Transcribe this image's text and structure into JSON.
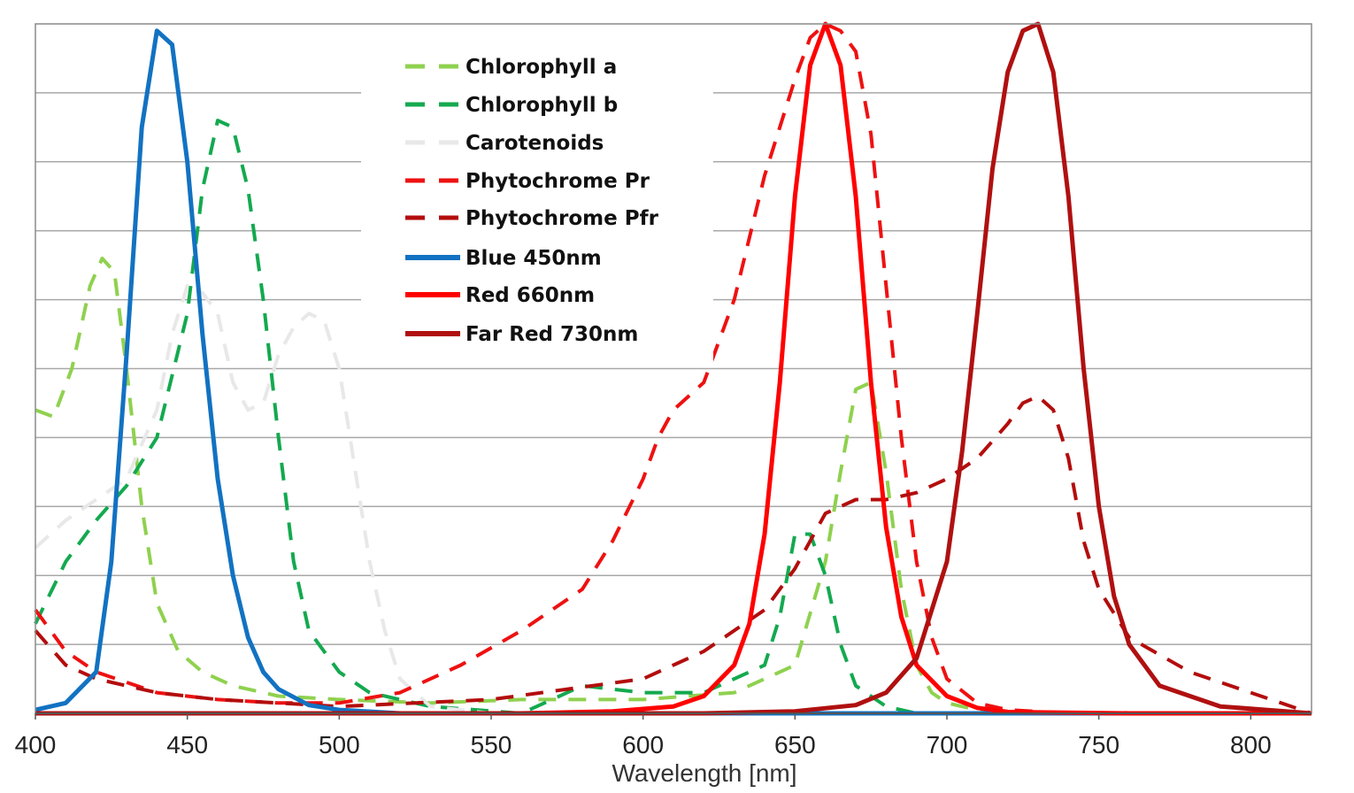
{
  "chart_data": {
    "type": "line",
    "title": "",
    "xlabel": "Wavelength [nm]",
    "ylabel": "",
    "xlim": [
      400,
      820
    ],
    "ylim": [
      0,
      1
    ],
    "x_ticks": [
      400,
      450,
      500,
      550,
      600,
      650,
      700,
      750,
      800
    ],
    "grid": "horizontal",
    "legend_position": "top-center",
    "series": [
      {
        "name": "Chlorophyll a",
        "style": "dashed",
        "color": "#8fd14f",
        "x": [
          400,
          406,
          412,
          418,
          422,
          426,
          430,
          435,
          440,
          447,
          455,
          465,
          480,
          500,
          530,
          560,
          600,
          630,
          650,
          660,
          665,
          670,
          675,
          680,
          685,
          690,
          695,
          700,
          710,
          730,
          800
        ],
        "y": [
          0.44,
          0.43,
          0.5,
          0.62,
          0.66,
          0.64,
          0.5,
          0.3,
          0.16,
          0.09,
          0.06,
          0.04,
          0.025,
          0.02,
          0.015,
          0.02,
          0.02,
          0.03,
          0.07,
          0.22,
          0.35,
          0.47,
          0.48,
          0.35,
          0.18,
          0.07,
          0.03,
          0.015,
          0.005,
          0.0,
          0.0
        ]
      },
      {
        "name": "Chlorophyll b",
        "style": "dashed",
        "color": "#14a94f",
        "x": [
          400,
          410,
          420,
          430,
          440,
          450,
          455,
          460,
          465,
          470,
          475,
          480,
          485,
          490,
          500,
          510,
          530,
          560,
          580,
          600,
          620,
          640,
          645,
          650,
          655,
          660,
          665,
          670,
          680,
          690,
          700,
          800
        ],
        "y": [
          0.13,
          0.22,
          0.28,
          0.33,
          0.4,
          0.58,
          0.76,
          0.86,
          0.85,
          0.76,
          0.6,
          0.4,
          0.22,
          0.12,
          0.06,
          0.03,
          0.01,
          0.0,
          0.04,
          0.03,
          0.03,
          0.07,
          0.14,
          0.26,
          0.26,
          0.2,
          0.1,
          0.04,
          0.01,
          0.0,
          0.0,
          0.0
        ]
      },
      {
        "name": "Carotenoids",
        "style": "dashed",
        "color": "#e8e8e8",
        "x": [
          400,
          410,
          420,
          430,
          440,
          445,
          450,
          455,
          460,
          465,
          470,
          475,
          480,
          485,
          490,
          495,
          500,
          505,
          510,
          515,
          520,
          530,
          550
        ],
        "y": [
          0.24,
          0.28,
          0.31,
          0.34,
          0.44,
          0.55,
          0.62,
          0.61,
          0.58,
          0.48,
          0.44,
          0.45,
          0.52,
          0.56,
          0.58,
          0.57,
          0.5,
          0.36,
          0.22,
          0.12,
          0.05,
          0.01,
          0.0
        ]
      },
      {
        "name": "Phytochrome Pr",
        "style": "dashed",
        "color": "#ee1111",
        "x": [
          400,
          410,
          420,
          440,
          460,
          480,
          500,
          520,
          540,
          560,
          580,
          590,
          600,
          605,
          610,
          620,
          630,
          640,
          650,
          655,
          660,
          665,
          670,
          675,
          680,
          685,
          690,
          695,
          700,
          710,
          720,
          740,
          800
        ],
        "y": [
          0.15,
          0.09,
          0.06,
          0.03,
          0.02,
          0.015,
          0.015,
          0.03,
          0.07,
          0.12,
          0.18,
          0.25,
          0.34,
          0.4,
          0.44,
          0.48,
          0.6,
          0.78,
          0.92,
          0.98,
          1.0,
          0.99,
          0.96,
          0.84,
          0.62,
          0.4,
          0.22,
          0.11,
          0.05,
          0.015,
          0.005,
          0.0,
          0.0
        ]
      },
      {
        "name": "Phytochrome Pfr",
        "style": "dashed",
        "color": "#b30d0d",
        "x": [
          400,
          410,
          420,
          440,
          460,
          480,
          500,
          550,
          600,
          620,
          640,
          650,
          660,
          670,
          680,
          690,
          700,
          710,
          720,
          725,
          730,
          735,
          740,
          745,
          750,
          760,
          780,
          800,
          820
        ],
        "y": [
          0.12,
          0.07,
          0.05,
          0.03,
          0.02,
          0.015,
          0.01,
          0.02,
          0.05,
          0.09,
          0.15,
          0.21,
          0.29,
          0.31,
          0.31,
          0.32,
          0.34,
          0.37,
          0.42,
          0.45,
          0.46,
          0.44,
          0.37,
          0.25,
          0.18,
          0.11,
          0.06,
          0.03,
          0.0
        ]
      },
      {
        "name": "Blue 450nm",
        "style": "solid",
        "color": "#1272c2",
        "x": [
          400,
          410,
          420,
          425,
          430,
          435,
          440,
          445,
          450,
          455,
          460,
          465,
          470,
          475,
          480,
          490,
          500,
          520,
          600,
          820
        ],
        "y": [
          0.005,
          0.015,
          0.06,
          0.22,
          0.52,
          0.85,
          0.99,
          0.97,
          0.8,
          0.55,
          0.34,
          0.2,
          0.11,
          0.06,
          0.035,
          0.012,
          0.005,
          0.0,
          0.0,
          0.0
        ]
      },
      {
        "name": "Red 660nm",
        "style": "solid",
        "color": "#ff0000",
        "x": [
          400,
          560,
          590,
          610,
          620,
          630,
          635,
          640,
          645,
          650,
          655,
          660,
          665,
          670,
          675,
          680,
          685,
          690,
          700,
          710,
          720,
          760,
          820
        ],
        "y": [
          0.0,
          0.0,
          0.003,
          0.01,
          0.025,
          0.07,
          0.13,
          0.26,
          0.48,
          0.75,
          0.94,
          1.0,
          0.94,
          0.75,
          0.48,
          0.27,
          0.14,
          0.07,
          0.025,
          0.008,
          0.002,
          0.0,
          0.0
        ]
      },
      {
        "name": "Far Red 730nm",
        "style": "solid",
        "color": "#b01010",
        "x": [
          400,
          620,
          650,
          670,
          680,
          690,
          700,
          705,
          710,
          715,
          720,
          725,
          730,
          735,
          740,
          745,
          750,
          755,
          760,
          770,
          790,
          820
        ],
        "y": [
          0.0,
          0.0,
          0.003,
          0.012,
          0.03,
          0.08,
          0.22,
          0.38,
          0.58,
          0.79,
          0.93,
          0.99,
          1.0,
          0.93,
          0.75,
          0.5,
          0.3,
          0.17,
          0.1,
          0.04,
          0.01,
          0.0
        ]
      }
    ]
  }
}
